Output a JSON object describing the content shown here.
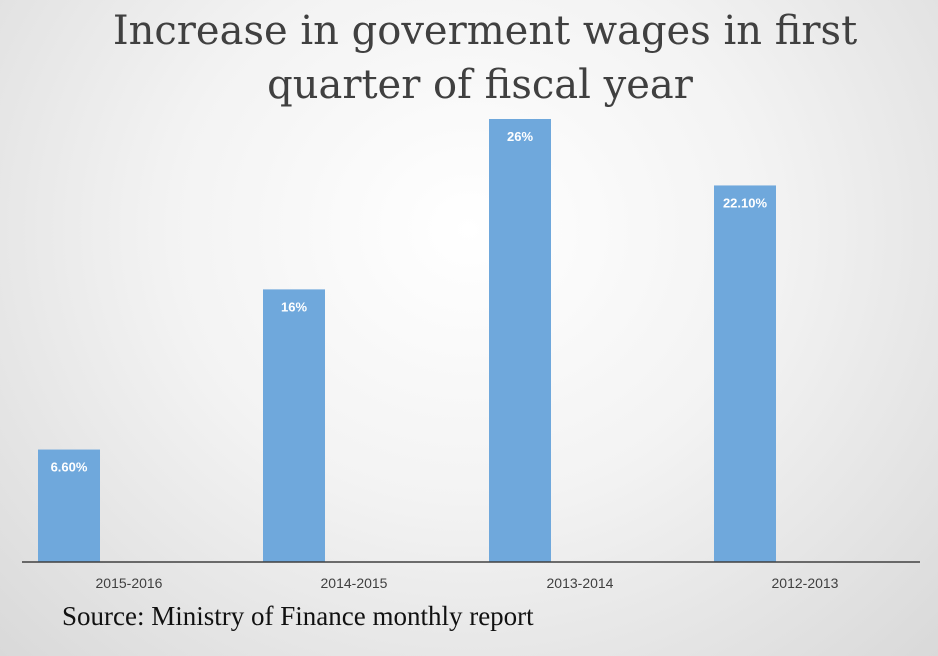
{
  "chart_data": {
    "type": "bar",
    "title_line1": "Increase in goverment wages in first",
    "title_line2": "quarter of fiscal year",
    "categories": [
      "2015-2016",
      "2014-2015",
      "2013-2014",
      "2012-2013"
    ],
    "values": [
      6.6,
      16,
      26,
      22.1
    ],
    "data_labels": [
      "6.60%",
      "16%",
      "26%",
      "22.10%"
    ],
    "ylim": [
      0,
      26
    ],
    "grid": false,
    "bar_color": "#6fa8dc",
    "xlabel": "",
    "ylabel": ""
  },
  "source": "Source: Ministry of Finance monthly report"
}
